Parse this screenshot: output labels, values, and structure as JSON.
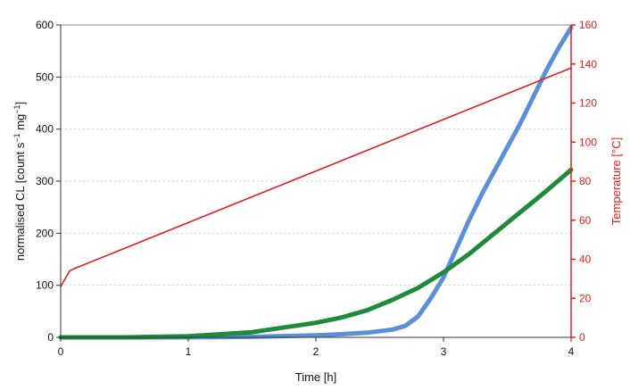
{
  "chart_data": {
    "type": "line",
    "x_axis": {
      "label": "Time [h]",
      "range": [
        0,
        4
      ],
      "ticks": [
        "0",
        "1",
        "2",
        "3",
        "4"
      ]
    },
    "y_axis_left": {
      "label_main": "normalised CL [count s",
      "label_sup1": "−1",
      "label_mid": " mg",
      "label_sup2": "−1",
      "label_end": "]",
      "range": [
        0,
        600
      ],
      "ticks": [
        "0",
        "100",
        "200",
        "300",
        "400",
        "500",
        "600"
      ]
    },
    "y_axis_right": {
      "label": "Temperature [°C]",
      "range": [
        0,
        160
      ],
      "ticks": [
        "0",
        "20",
        "40",
        "60",
        "80",
        "100",
        "120",
        "140",
        "160"
      ],
      "color": "#e02020"
    },
    "grid": "horizontal dotted",
    "legend": "none",
    "series": [
      {
        "axis": "left",
        "color": "#5b8fd8",
        "x": [
          0,
          0.5,
          1.0,
          1.5,
          2.0,
          2.2,
          2.4,
          2.6,
          2.7,
          2.8,
          2.9,
          3.0,
          3.1,
          3.2,
          3.3,
          3.4,
          3.5,
          3.6,
          3.7,
          3.8,
          3.9,
          4.0
        ],
        "y": [
          0,
          0,
          0,
          1,
          4,
          6,
          9,
          15,
          22,
          40,
          75,
          115,
          170,
          225,
          275,
          320,
          365,
          410,
          460,
          510,
          555,
          595
        ]
      },
      {
        "axis": "left",
        "color": "#1f8a3a",
        "x": [
          0,
          0.5,
          1.0,
          1.5,
          2.0,
          2.2,
          2.4,
          2.6,
          2.8,
          3.0,
          3.2,
          3.4,
          3.6,
          3.8,
          4.0
        ],
        "y": [
          0,
          0,
          2,
          10,
          28,
          38,
          52,
          72,
          95,
          125,
          160,
          200,
          240,
          280,
          322
        ]
      },
      {
        "axis": "right",
        "color": "#e02020",
        "x": [
          0,
          0.07,
          0.1,
          4.0
        ],
        "y": [
          26,
          34,
          35,
          138
        ]
      }
    ]
  }
}
